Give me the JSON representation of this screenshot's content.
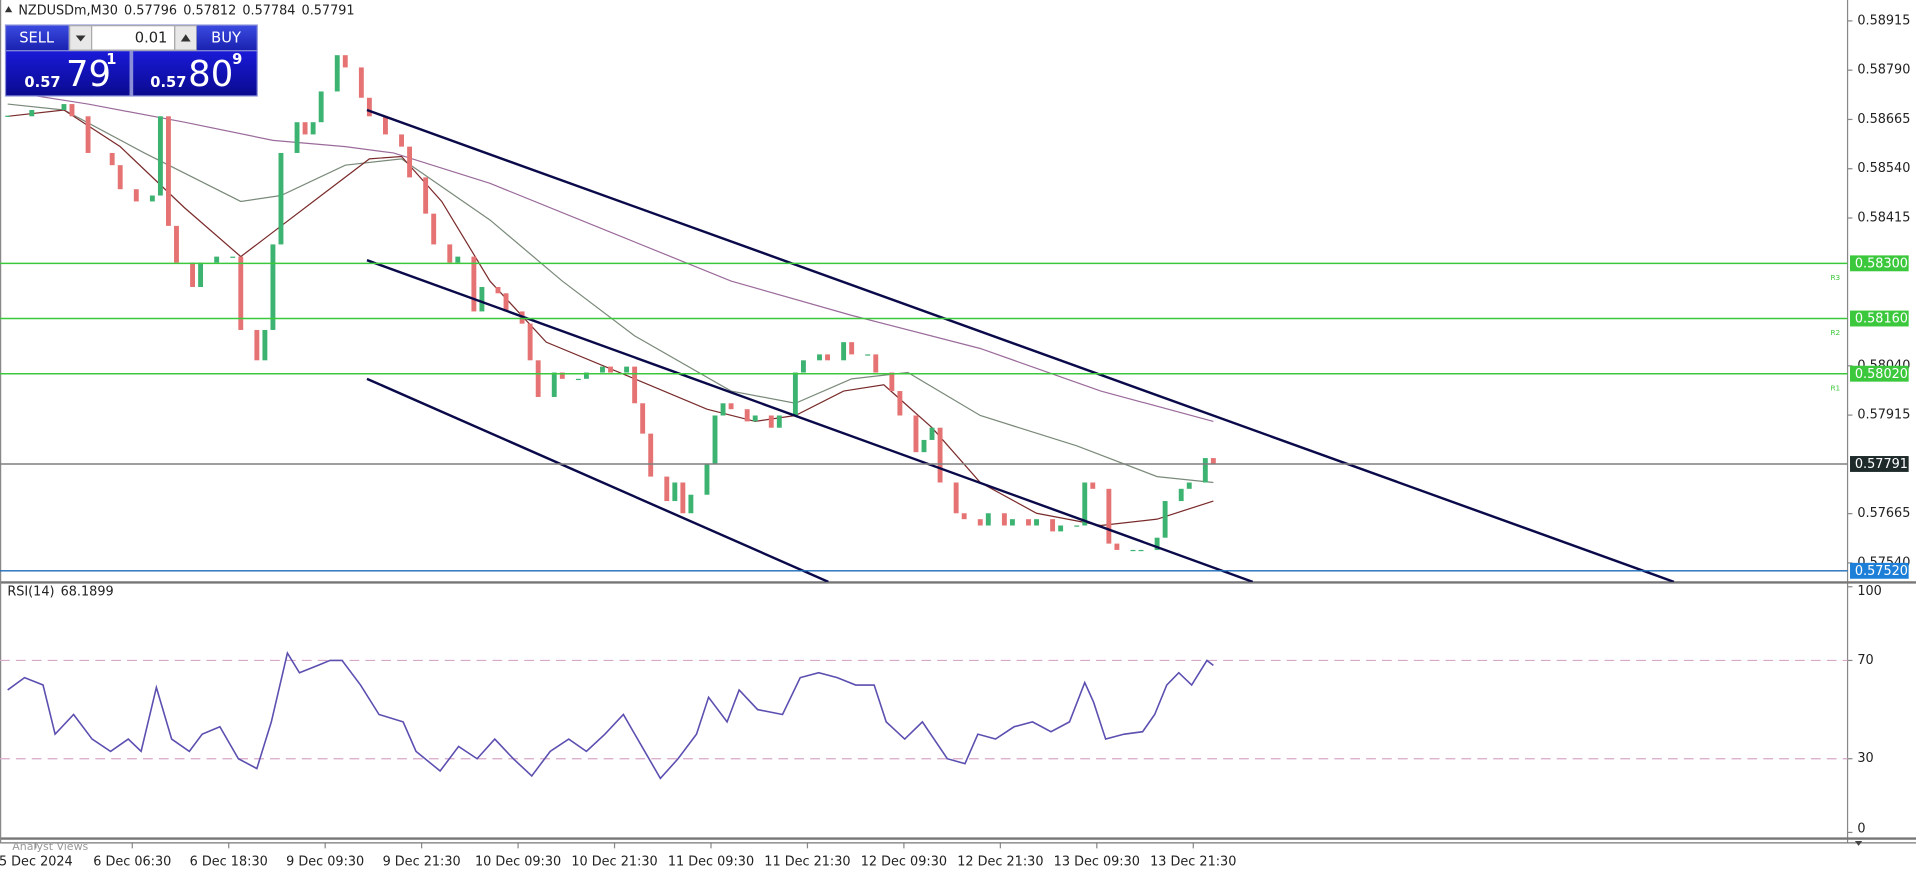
{
  "header": {
    "symbol": "NZDUSDm,M30",
    "ohlc": [
      0.57796,
      0.57812,
      0.57784,
      0.57791
    ]
  },
  "trade_panel": {
    "sell": "SELL",
    "buy": "BUY",
    "lot": "0.01",
    "sell_price": {
      "big": "0.57",
      "digits": "79",
      "sup": "1"
    },
    "buy_price": {
      "big": "0.57",
      "digits": "80",
      "sup": "9"
    }
  },
  "footer": "Analyst Views",
  "chart_data": [
    {
      "type": "candlestick",
      "up_color": "#3cb371",
      "down_color": "#e57373",
      "x": [
        0,
        3,
        7,
        8,
        10,
        13,
        14,
        16,
        18,
        19,
        20,
        21,
        23,
        24,
        26,
        28,
        29,
        31,
        32,
        33,
        34,
        36,
        37,
        38,
        39,
        41,
        42,
        44,
        45,
        47,
        49,
        50,
        52,
        53,
        55,
        56,
        58,
        59,
        61,
        62,
        64,
        65,
        66,
        68,
        69,
        71,
        72,
        74,
        75,
        77,
        78,
        79,
        80,
        82,
        83,
        84,
        85,
        87,
        88,
        89,
        90,
        92,
        93,
        95,
        96,
        98,
        99,
        101,
        102,
        104,
        105,
        107,
        108,
        110,
        111,
        113,
        114,
        115,
        116,
        118,
        119,
        121,
        122,
        124,
        125,
        127,
        128,
        130,
        131,
        133,
        134,
        135,
        137,
        138,
        140,
        141,
        143,
        144,
        146,
        147,
        149,
        150
      ],
      "close": [
        0.58673,
        0.58689,
        0.58704,
        0.58673,
        0.5858,
        0.58549,
        0.58488,
        0.58457,
        0.58472,
        0.58673,
        0.58395,
        0.58302,
        0.5824,
        0.58302,
        0.58317,
        0.58317,
        0.58131,
        0.58054,
        0.58131,
        0.58348,
        0.5858,
        0.58658,
        0.58627,
        0.58658,
        0.58736,
        0.58828,
        0.58797,
        0.5872,
        0.58673,
        0.58627,
        0.58596,
        0.58518,
        0.58426,
        0.58348,
        0.58302,
        0.58317,
        0.58178,
        0.5824,
        0.58224,
        0.58178,
        0.58147,
        0.58054,
        0.57961,
        0.58023,
        0.58007,
        0.58007,
        0.58023,
        0.58038,
        0.58023,
        0.58038,
        0.57945,
        0.57868,
        0.57759,
        0.57697,
        0.57744,
        0.57666,
        0.57713,
        0.5779,
        0.57914,
        0.57945,
        0.5793,
        0.57899,
        0.57914,
        0.57883,
        0.57914,
        0.58023,
        0.58054,
        0.58069,
        0.58054,
        0.581,
        0.58069,
        0.58069,
        0.58023,
        0.57976,
        0.57914,
        0.57821,
        0.57852,
        0.57883,
        0.57744,
        0.57666,
        0.57651,
        0.57635,
        0.57666,
        0.57635,
        0.57651,
        0.57635,
        0.57651,
        0.5762,
        0.57635,
        0.57635,
        0.57744,
        0.57728,
        0.57589,
        0.57573,
        0.57573,
        0.57573,
        0.57604,
        0.57697,
        0.57728,
        0.57744,
        0.57806,
        0.57791
      ],
      "xlim": [
        -0.5,
        228.6
      ],
      "ylim": [
        0.57492,
        0.58968
      ],
      "yticks": [
        {
          "value": 0.58915,
          "label": "0.58915"
        },
        {
          "value": 0.5879,
          "label": "0.58790"
        },
        {
          "value": 0.58665,
          "label": "0.58665"
        },
        {
          "value": 0.5854,
          "label": "0.58540"
        },
        {
          "value": 0.58415,
          "label": "0.58415"
        },
        {
          "value": 0.5804,
          "label": "0.58040"
        },
        {
          "value": 0.57915,
          "label": "0.57915"
        },
        {
          "value": 0.57665,
          "label": "0.57665"
        },
        {
          "value": 0.5754,
          "label": "0.57540"
        }
      ],
      "xticks": [
        {
          "value": 3.5,
          "label": "5 Dec 2024"
        },
        {
          "value": 15.5,
          "label": "6 Dec 06:30"
        },
        {
          "value": 27.5,
          "label": "6 Dec 18:30"
        },
        {
          "value": 39.5,
          "label": "9 Dec 09:30"
        },
        {
          "value": 51.5,
          "label": "9 Dec 21:30"
        },
        {
          "value": 63.5,
          "label": "10 Dec 09:30"
        },
        {
          "value": 75.5,
          "label": "10 Dec 21:30"
        },
        {
          "value": 87.5,
          "label": "11 Dec 09:30"
        },
        {
          "value": 99.5,
          "label": "11 Dec 21:30"
        },
        {
          "value": 111.5,
          "label": "12 Dec 09:30"
        },
        {
          "value": 123.5,
          "label": "12 Dec 21:30"
        },
        {
          "value": 135.5,
          "label": "13 Dec 09:30"
        },
        {
          "value": 147.5,
          "label": "13 Dec 21:30"
        }
      ],
      "moving_averages": [
        {
          "color": "#9b6b9b",
          "x": [
            0,
            10,
            22,
            33,
            42,
            48,
            60,
            75,
            90,
            105,
            121,
            136,
            150
          ],
          "values": [
            0.58736,
            0.58704,
            0.58658,
            0.58612,
            0.58596,
            0.5858,
            0.58503,
            0.58379,
            0.58255,
            0.58168,
            0.58084,
            0.57976,
            0.57899
          ]
        },
        {
          "color": "#7a8a7a",
          "x": [
            0,
            7,
            17,
            29,
            34,
            42,
            49,
            60,
            69,
            78,
            90,
            98,
            105,
            112,
            121,
            133,
            143,
            150
          ],
          "values": [
            0.58704,
            0.58689,
            0.5858,
            0.58457,
            0.58472,
            0.58549,
            0.58565,
            0.5841,
            0.58255,
            0.58116,
            0.57976,
            0.57945,
            0.58007,
            0.58023,
            0.57914,
            0.57837,
            0.57759,
            0.57744
          ]
        },
        {
          "color": "#7a2a2a",
          "x": [
            0,
            7,
            14,
            22,
            29,
            33,
            39,
            45,
            49,
            54,
            60,
            67,
            78,
            87,
            93,
            98,
            104,
            109,
            115,
            121,
            128,
            136,
            143,
            150
          ],
          "values": [
            0.58673,
            0.58689,
            0.58596,
            0.58441,
            0.58317,
            0.58379,
            0.58472,
            0.58565,
            0.58571,
            0.58457,
            0.58255,
            0.581,
            0.58007,
            0.5793,
            0.57899,
            0.57914,
            0.57976,
            0.57992,
            0.57883,
            0.57744,
            0.57666,
            0.57635,
            0.57651,
            0.57697
          ]
        }
      ],
      "trend_lines": [
        {
          "color": "#0a0a4a",
          "x": [
            44.7,
            207.3
          ],
          "values": [
            0.58689,
            0.57492
          ]
        },
        {
          "color": "#0a0a4a",
          "x": [
            44.7,
            154.9
          ],
          "values": [
            0.58308,
            0.57492
          ]
        },
        {
          "color": "#0a0a4a",
          "x": [
            44.7,
            102.1
          ],
          "values": [
            0.58007,
            0.57492
          ]
        }
      ],
      "levels": [
        {
          "value": 0.583,
          "label": "0.58300",
          "tag": "R3",
          "color": "#3cc83c"
        },
        {
          "value": 0.5816,
          "label": "0.58160",
          "tag": "R2",
          "color": "#3cc83c"
        },
        {
          "value": 0.5802,
          "label": "0.58020",
          "tag": "R1",
          "color": "#3cc83c"
        },
        {
          "value": 0.57791,
          "label": "0.57791",
          "color": "#7f7f7f",
          "label_color": "#1e2a2a"
        },
        {
          "value": 0.5752,
          "label": "0.57520",
          "color": "#1e6bb8",
          "label_color": "#1e7fd8"
        }
      ]
    },
    {
      "type": "line",
      "title": "RSI(14)",
      "current": 68.1899,
      "color": "#5b4fb0",
      "x": [
        0,
        2.1,
        4.4,
        5.9,
        8.2,
        10.5,
        12.8,
        15,
        16.6,
        18.5,
        20.4,
        22.6,
        24.2,
        26.4,
        28.7,
        31,
        32.8,
        34.8,
        36.3,
        38.6,
        40.1,
        41.6,
        43.9,
        46.2,
        49.2,
        50.8,
        53.8,
        56.1,
        58.4,
        60.6,
        62.9,
        65.2,
        67.5,
        69.8,
        72,
        74.3,
        76.6,
        78.9,
        81.2,
        83.4,
        85.7,
        87.2,
        89.5,
        91,
        93.3,
        96.4,
        98.6,
        100.9,
        103.2,
        105.5,
        107.8,
        109.3,
        111.6,
        113.8,
        116.9,
        119.1,
        120.7,
        122.9,
        125.2,
        127.5,
        129.8,
        132.1,
        134,
        135.1,
        136.6,
        138.9,
        141.2,
        142.7,
        144.2,
        145.7,
        147.3,
        149.2,
        150
      ],
      "values": [
        58,
        63,
        60,
        40,
        48,
        38,
        33,
        38,
        33,
        59,
        38,
        33,
        40,
        43,
        30,
        26,
        45,
        73,
        65,
        68,
        70,
        70,
        60,
        48,
        45,
        33,
        25,
        35,
        30,
        38,
        30,
        23,
        33,
        38,
        33,
        40,
        48,
        35,
        22,
        30,
        40,
        55,
        45,
        58,
        50,
        48,
        63,
        65,
        63,
        60,
        60,
        45,
        38,
        45,
        30,
        28,
        40,
        38,
        43,
        45,
        41,
        45,
        61,
        53,
        38,
        40,
        41,
        48,
        60,
        65,
        60,
        70,
        68
      ],
      "ylim": [
        0,
        100
      ],
      "yticks": [
        100,
        70,
        30,
        0
      ],
      "levels": [
        70,
        30
      ],
      "level_color": "#d8a8c8"
    }
  ]
}
